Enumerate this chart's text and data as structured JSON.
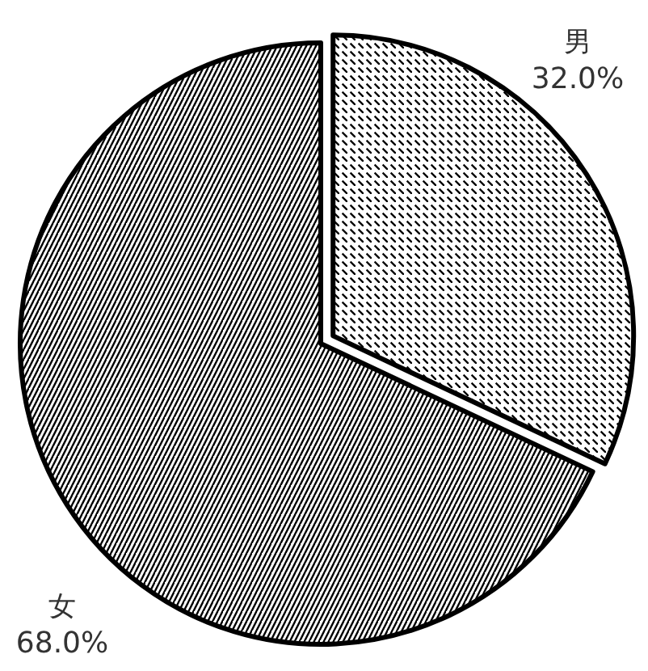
{
  "chart_data": {
    "type": "pie",
    "categories": [
      "男",
      "女"
    ],
    "values": [
      32.0,
      68.0
    ],
    "value_labels": [
      "32.0%",
      "68.0%"
    ],
    "colors": [
      "#ffffff",
      "#ffffff"
    ]
  }
}
